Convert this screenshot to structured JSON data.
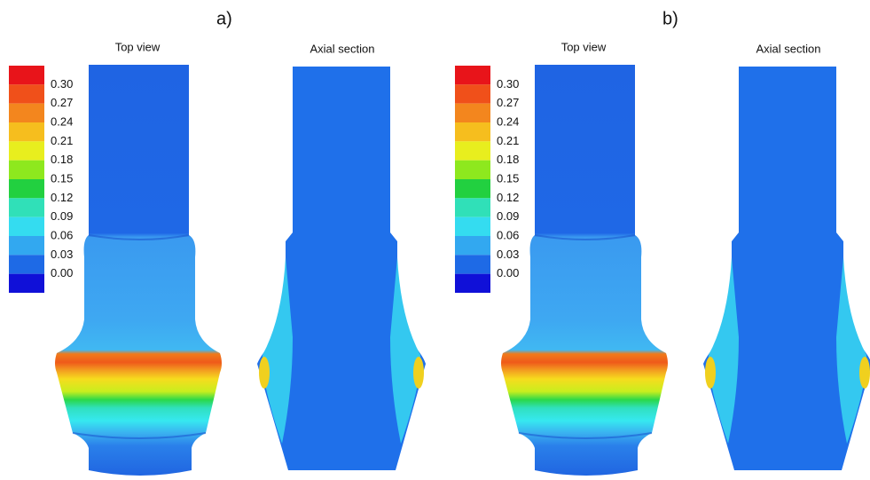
{
  "panels": [
    {
      "label": "a)",
      "views": [
        "Top view",
        "Axial section"
      ],
      "legend": [
        "0.30",
        "0.27",
        "0.24",
        "0.21",
        "0.18",
        "0.15",
        "0.12",
        "0.09",
        "0.06",
        "0.03",
        "0.00"
      ]
    },
    {
      "label": "b)",
      "views": [
        "Top view",
        "Axial section"
      ],
      "legend": [
        "0.30",
        "0.27",
        "0.24",
        "0.21",
        "0.18",
        "0.15",
        "0.12",
        "0.09",
        "0.06",
        "0.03",
        "0.00"
      ]
    }
  ]
}
